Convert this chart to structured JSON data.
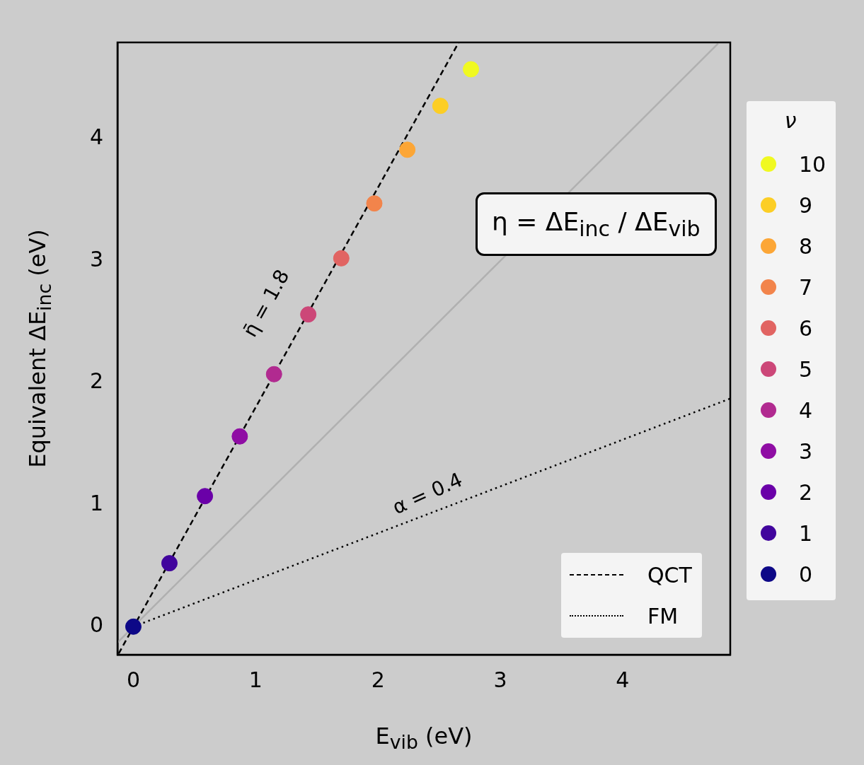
{
  "chart_data": {
    "type": "scatter",
    "xlabel": "E$_{vib}$ (eV)",
    "ylabel": "Equivalent ΔE$_{inc}$ (eV)",
    "legend_title": "ν",
    "legend": "right",
    "grid": false,
    "marker": "circle",
    "xlim": [
      -0.13,
      4.88
    ],
    "ylim": [
      -0.23,
      4.79
    ],
    "xticks": [
      0,
      1,
      2,
      3,
      4
    ],
    "yticks": [
      0,
      1,
      2,
      3,
      4
    ],
    "series": [
      {
        "type": "line",
        "name": "QCT",
        "color": "#000000",
        "line_style": "dashed",
        "marker": "none",
        "x": [
          -0.12,
          2.66
        ],
        "values": [
          -0.22,
          4.79
        ]
      },
      {
        "type": "line",
        "name": "FM",
        "color": "#000000",
        "line_style": "dotted",
        "marker": "none",
        "x": [
          0,
          4.88
        ],
        "values": [
          0,
          1.87
        ]
      },
      {
        "type": "line",
        "color": "#b0b0b0",
        "line_style": "solid",
        "marker": "none",
        "x": [
          -0.13,
          4.78
        ],
        "values": [
          -0.13,
          4.78
        ]
      },
      {
        "name": "10",
        "color": "#f0f921",
        "x": [
          2.76
        ],
        "values": [
          4.57
        ]
      },
      {
        "name": "9",
        "color": "#fcce25",
        "x": [
          2.51
        ],
        "values": [
          4.27
        ]
      },
      {
        "name": "8",
        "color": "#fca636",
        "x": [
          2.24
        ],
        "values": [
          3.91
        ]
      },
      {
        "name": "7",
        "color": "#f2844b",
        "x": [
          1.97
        ],
        "values": [
          3.47
        ]
      },
      {
        "name": "6",
        "color": "#e16462",
        "x": [
          1.7
        ],
        "values": [
          3.02
        ]
      },
      {
        "name": "5",
        "color": "#cc4778",
        "x": [
          1.43
        ],
        "values": [
          2.56
        ]
      },
      {
        "name": "4",
        "color": "#b12a90",
        "x": [
          1.15
        ],
        "values": [
          2.07
        ]
      },
      {
        "name": "3",
        "color": "#8f0da4",
        "x": [
          0.87
        ],
        "values": [
          1.56
        ]
      },
      {
        "name": "2",
        "color": "#6a00a8",
        "x": [
          0.585
        ],
        "values": [
          1.07
        ]
      },
      {
        "name": "1",
        "color": "#41049d",
        "x": [
          0.295
        ],
        "values": [
          0.52
        ]
      },
      {
        "name": "0",
        "color": "#0d0887",
        "x": [
          0
        ],
        "values": [
          0
        ]
      }
    ],
    "annotations": [
      "η̄ = 1.8",
      "α = 0.4",
      "η = ΔE$_{inc}$ / ΔE$_{vib}$"
    ]
  }
}
